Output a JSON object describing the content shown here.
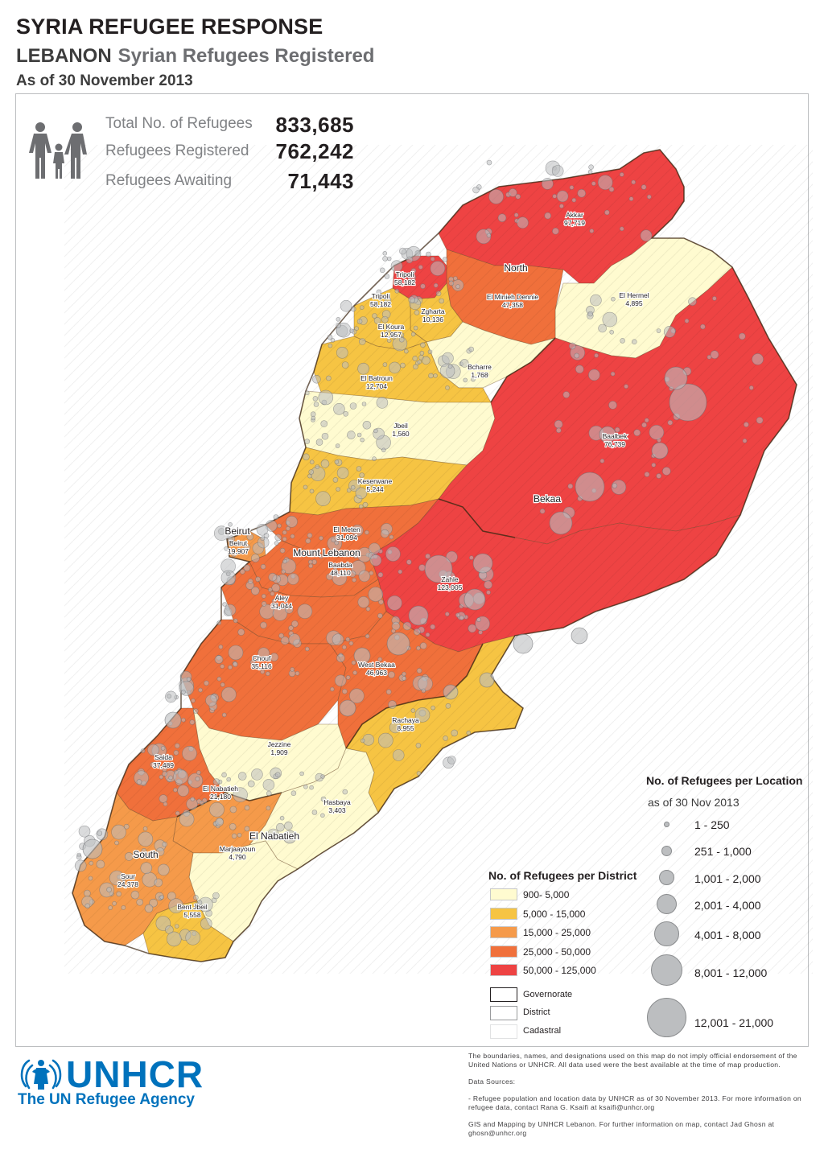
{
  "header": {
    "title": "SYRIA REFUGEE RESPONSE",
    "country": "LEBANON",
    "subtitle": "Syrian Refugees Registered",
    "date": "As of 30 November 2013"
  },
  "stats": {
    "total_label": "Total No. of Refugees",
    "total_value": "833,685",
    "registered_label": "Refugees Registered",
    "registered_value": "762,242",
    "awaiting_label": "Refugees Awaiting",
    "awaiting_value": "71,443"
  },
  "colors": {
    "class_1": "#fffbd0",
    "class_2": "#f6c443",
    "class_3": "#f59a4a",
    "class_4": "#f0703b",
    "class_5": "#ee4343",
    "point": "#bcbec0",
    "brand": "#0072bc"
  },
  "governorates": [
    "North",
    "Bekaa",
    "Mount Lebanon",
    "Beirut",
    "South",
    "El Nabatieh"
  ],
  "districts": [
    {
      "name": "Akkar",
      "value": "97,719",
      "class": 5
    },
    {
      "name": "Tripoli",
      "value": "58,182",
      "class": 5
    },
    {
      "name": "Tripoli",
      "value": "58,182",
      "class": 5
    },
    {
      "name": "El Minieh Dennie",
      "value": "47,358",
      "class": 4
    },
    {
      "name": "El Hermel",
      "value": "4,895",
      "class": 1
    },
    {
      "name": "Zgharta",
      "value": "10,136",
      "class": 2
    },
    {
      "name": "El Koura",
      "value": "12,957",
      "class": 2
    },
    {
      "name": "Bcharre",
      "value": "1,768",
      "class": 1
    },
    {
      "name": "El Batroun",
      "value": "12,704",
      "class": 2
    },
    {
      "name": "Jbeil",
      "value": "1,560",
      "class": 1
    },
    {
      "name": "Baalbek",
      "value": "76,739",
      "class": 5
    },
    {
      "name": "Keserwane",
      "value": "5,244",
      "class": 2
    },
    {
      "name": "El Meten",
      "value": "31,094",
      "class": 4
    },
    {
      "name": "Beirut",
      "value": "19,907",
      "class": 3
    },
    {
      "name": "Baabda",
      "value": "48,110",
      "class": 4
    },
    {
      "name": "Zahle",
      "value": "123,005",
      "class": 5
    },
    {
      "name": "Aley",
      "value": "31,044",
      "class": 4
    },
    {
      "name": "Chouf",
      "value": "35,116",
      "class": 4
    },
    {
      "name": "West Bekaa",
      "value": "46,963",
      "class": 4
    },
    {
      "name": "Rachaya",
      "value": "8,955",
      "class": 2
    },
    {
      "name": "Jezzine",
      "value": "1,909",
      "class": 1
    },
    {
      "name": "Saida",
      "value": "37,489",
      "class": 4
    },
    {
      "name": "El Nabatieh",
      "value": "21,180",
      "class": 3
    },
    {
      "name": "Hasbaya",
      "value": "3,403",
      "class": 1
    },
    {
      "name": "Marjaayoun",
      "value": "4,790",
      "class": 1
    },
    {
      "name": "Sour",
      "value": "24,378",
      "class": 3
    },
    {
      "name": "Bent Jbeil",
      "value": "5,558",
      "class": 2
    }
  ],
  "legend_location": {
    "title": "No. of Refugees per Location",
    "date": "as of 30 Nov 2013",
    "classes": [
      "1 - 250",
      "251 - 1,000",
      "1,001 - 2,000",
      "2,001 - 4,000",
      "4,001 - 8,000",
      "8,001 - 12,000",
      "12,001 - 21,000"
    ]
  },
  "legend_district": {
    "title": "No. of Refugees per District",
    "classes": [
      "900- 5,000",
      "5,000 - 15,000",
      "15,000 - 25,000",
      "25,000 - 50,000",
      "50,000 - 125,000"
    ],
    "boundaries": [
      "Governorate",
      "District",
      "Cadastral"
    ]
  },
  "logo": {
    "word": "UNHCR",
    "tagline": "The UN Refugee Agency"
  },
  "notes": {
    "disclaimer": "The boundaries, names, and designations used on this map do not imply official endorsement of the United Nations or UNHCR. All data used were the best available at the time of map production.",
    "sources_heading": "Data Sources:",
    "source_1": "- Refugee population and location data by UNHCR as of 30 November 2013. For more information on refugee data, contact Rana G. Ksaifi at ksaifi@unhcr.org",
    "credit": "GIS and Mapping by UNHCR Lebanon. For further information on map, contact Jad Ghosn at ghosn@unhcr.org"
  }
}
